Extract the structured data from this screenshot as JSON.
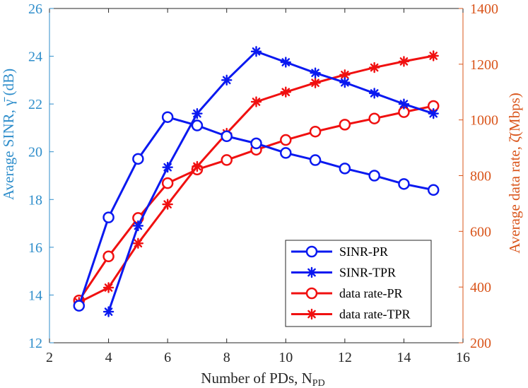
{
  "colors": {
    "left_axis": "#2f8ecb",
    "right_axis": "#d9541a",
    "blue": "#0a19f0",
    "red": "#f01010",
    "axes": "#262626",
    "grid": "#ffffff"
  },
  "chart_data": {
    "type": "line",
    "xlabel": "Number of PDs, N",
    "xlabel_sub": "PD",
    "ylabel_left": "Average SINR, γ̄ (dB)",
    "ylabel_right": "Average data rate, ζ̄(Mbps)",
    "xlim": [
      2,
      16
    ],
    "ylim_left": [
      12,
      26
    ],
    "ylim_right": [
      200,
      1400
    ],
    "x_ticks": [
      "2",
      "4",
      "6",
      "8",
      "10",
      "12",
      "14",
      "16"
    ],
    "y_left_ticks": [
      "12",
      "14",
      "16",
      "18",
      "20",
      "22",
      "24",
      "26"
    ],
    "y_right_ticks": [
      "200",
      "400",
      "600",
      "800",
      "1000",
      "1200",
      "1400"
    ],
    "grid": false,
    "legend_position": "bottom-right",
    "series": [
      {
        "name": "SINR-PR",
        "axis": "left",
        "color": "#0a19f0",
        "marker": "circle",
        "x": [
          3,
          4,
          5,
          6,
          7,
          8,
          9,
          10,
          11,
          12,
          13,
          14,
          15
        ],
        "y": [
          13.55,
          17.25,
          19.7,
          21.45,
          21.1,
          20.65,
          20.35,
          19.95,
          19.65,
          19.3,
          19.0,
          18.65,
          18.4
        ]
      },
      {
        "name": "SINR-TPR",
        "axis": "left",
        "color": "#0a19f0",
        "marker": "star",
        "x": [
          4,
          5,
          6,
          7,
          8,
          9,
          10,
          11,
          12,
          13,
          14,
          15
        ],
        "y": [
          13.3,
          16.9,
          19.35,
          21.6,
          23.0,
          24.2,
          23.75,
          23.3,
          22.9,
          22.45,
          22.0,
          21.6
        ]
      },
      {
        "name": "data rate-PR",
        "axis": "right",
        "color": "#f01010",
        "marker": "circle",
        "x": [
          3,
          4,
          5,
          6,
          7,
          8,
          9,
          10,
          11,
          12,
          13,
          14,
          15
        ],
        "y": [
          352,
          510,
          648,
          773,
          822,
          856,
          893,
          928,
          958,
          983,
          1005,
          1028,
          1050
        ]
      },
      {
        "name": "data rate-TPR",
        "axis": "right",
        "color": "#f01010",
        "marker": "star",
        "x": [
          3,
          4,
          5,
          6,
          7,
          8,
          9,
          10,
          11,
          12,
          13,
          14,
          15
        ],
        "y": [
          345,
          398,
          557,
          697,
          833,
          952,
          1065,
          1100,
          1133,
          1162,
          1188,
          1210,
          1230
        ]
      }
    ]
  }
}
